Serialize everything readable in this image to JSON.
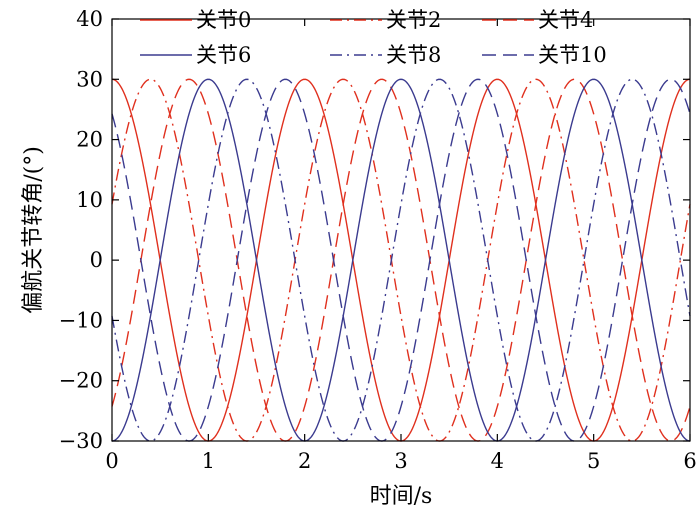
{
  "chart_data": {
    "type": "line",
    "xlabel": "时间/s",
    "ylabel": "偏航关节转角/(°)",
    "xlim": [
      0,
      6
    ],
    "ylim": [
      -30,
      40
    ],
    "xticks": [
      "0",
      "1",
      "2",
      "3",
      "4",
      "5",
      "6"
    ],
    "yticks": [
      "-30",
      "-20",
      "-10",
      "0",
      "10",
      "20",
      "30",
      "40"
    ],
    "grid": false,
    "legend_position": "top",
    "period_s": 2,
    "amplitude_deg": 30,
    "series": [
      {
        "name": "关节0",
        "color": "#e0301e",
        "style": "solid",
        "phase_shift_s": 0.0
      },
      {
        "name": "关节2",
        "color": "#e0301e",
        "style": "dashdot",
        "phase_shift_s": 0.4
      },
      {
        "name": "关节4",
        "color": "#e0301e",
        "style": "dashed",
        "phase_shift_s": 0.8
      },
      {
        "name": "关节6",
        "color": "#3b3b8f",
        "style": "solid",
        "phase_shift_s": 1.0
      },
      {
        "name": "关节8",
        "color": "#3b3b8f",
        "style": "dashdot",
        "phase_shift_s": 1.4
      },
      {
        "name": "关节10",
        "color": "#3b3b8f",
        "style": "dashed",
        "phase_shift_s": 1.8
      }
    ]
  }
}
